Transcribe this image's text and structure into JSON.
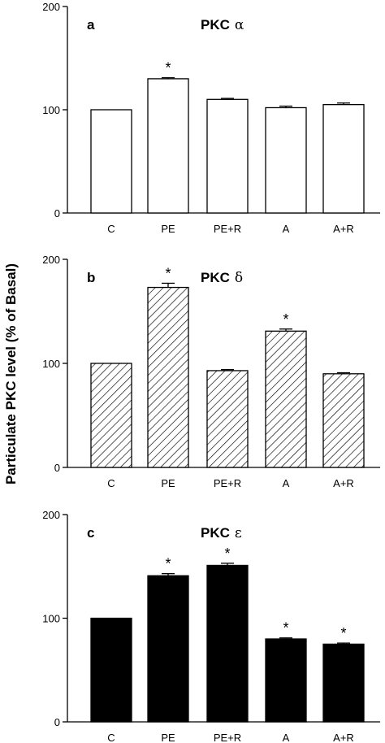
{
  "figure": {
    "ylabel": "Particulate PKC level (% of Basal)"
  },
  "chart_data": [
    {
      "type": "bar",
      "panel": "a",
      "title": "PKC",
      "title_symbol": "α",
      "categories": [
        "C",
        "PE",
        "PE+R",
        "A",
        "A+R"
      ],
      "values": [
        100,
        130,
        110,
        102,
        105
      ],
      "errors": [
        0,
        1,
        1,
        1.5,
        1.5
      ],
      "significant": [
        false,
        true,
        false,
        false,
        false
      ],
      "significance_marker": "*",
      "ylim": [
        0,
        200
      ],
      "yticks": [
        0,
        100,
        200
      ],
      "bar_style": "open",
      "colors": {
        "fill": "#ffffff",
        "stroke": "#000000"
      }
    },
    {
      "type": "bar",
      "panel": "b",
      "title": "PKC",
      "title_symbol": "δ",
      "categories": [
        "C",
        "PE",
        "PE+R",
        "A",
        "A+R"
      ],
      "values": [
        100,
        173,
        93,
        131,
        90
      ],
      "errors": [
        0,
        4,
        1,
        2,
        1
      ],
      "significant": [
        false,
        true,
        false,
        true,
        false
      ],
      "significance_marker": "*",
      "ylim": [
        0,
        200
      ],
      "yticks": [
        0,
        100,
        200
      ],
      "bar_style": "hatched",
      "colors": {
        "fill": "#ffffff",
        "stroke": "#000000"
      }
    },
    {
      "type": "bar",
      "panel": "c",
      "title": "PKC",
      "title_symbol": "ε",
      "categories": [
        "C",
        "PE",
        "PE+R",
        "A",
        "A+R"
      ],
      "values": [
        100,
        141,
        151,
        80,
        75
      ],
      "errors": [
        0,
        2,
        2,
        1,
        1
      ],
      "significant": [
        false,
        true,
        true,
        true,
        true
      ],
      "significance_marker": "*",
      "ylim": [
        0,
        200
      ],
      "yticks": [
        0,
        100,
        200
      ],
      "bar_style": "filled",
      "colors": {
        "fill": "#000000",
        "stroke": "#000000"
      }
    }
  ]
}
